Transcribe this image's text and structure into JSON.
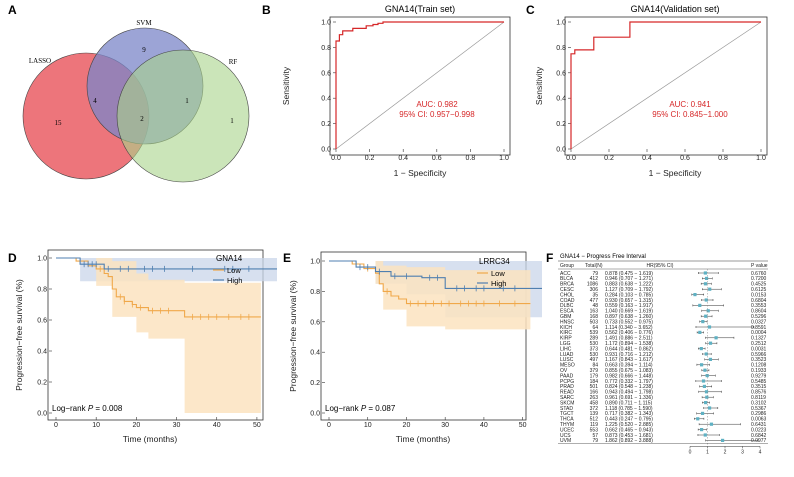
{
  "figure": {
    "colors": {
      "lasso": "#ec6e74",
      "svm": "#7b86c8",
      "rf": "#a8d48a",
      "roc": "#d62728",
      "low": "#f0a84a",
      "low_band": "#fbe3c0",
      "high": "#4f7fb0",
      "high_band": "#c9d6ea",
      "forest_point": "#5fb1c3"
    }
  },
  "panels": {
    "A": {
      "letter": "A",
      "labels": {
        "lasso": "LASSO",
        "svm": "SVM",
        "rf": "RF"
      },
      "counts": {
        "lasso_only": "15",
        "svm_only": "9",
        "rf_only": "1",
        "lasso_svm": "4",
        "svm_rf": "1",
        "all": "2"
      }
    },
    "B": {
      "letter": "B",
      "title": "GNA14(Train set)",
      "xlabel": "1 − Specificity",
      "ylabel": "Sensitivity",
      "auc": "AUC: 0.982",
      "ci": "95% CI: 0.957−0.998",
      "ticks": [
        "0.0",
        "0.2",
        "0.4",
        "0.6",
        "0.8",
        "1.0"
      ]
    },
    "C": {
      "letter": "C",
      "title": "GNA14(Validation set)",
      "xlabel": "1 − Specificity",
      "ylabel": "Sensitivity",
      "auc": "AUC: 0.941",
      "ci": "95% CI: 0.845−1.000",
      "ticks": [
        "0.0",
        "0.2",
        "0.4",
        "0.6",
        "0.8",
        "1.0"
      ]
    },
    "D": {
      "letter": "D",
      "legend_title": "GNA14",
      "legend_low": "Low",
      "legend_high": "High",
      "xlabel": "Time (months)",
      "ylabel": "Progression−free survival (%)",
      "logrank_text": "Log−rank ",
      "p_label": "P",
      "p_value": " = 0.008",
      "xticks": [
        "0",
        "10",
        "20",
        "30",
        "40",
        "50"
      ],
      "yticks": [
        "0.0",
        "0.2",
        "0.4",
        "0.6",
        "0.8",
        "1.0"
      ]
    },
    "E": {
      "letter": "E",
      "legend_title": "LRRC34",
      "legend_low": "Low",
      "legend_high": "High",
      "xlabel": "Time (months)",
      "ylabel": "Progression−free survival (%)",
      "logrank_text": "Log−rank ",
      "p_label": "P",
      "p_value": " = 0.087",
      "xticks": [
        "0",
        "10",
        "20",
        "30",
        "40",
        "50"
      ],
      "yticks": [
        "0.0",
        "0.2",
        "0.4",
        "0.6",
        "0.8",
        "1.0"
      ]
    },
    "F": {
      "letter": "F",
      "title": "GNA14 − Progress Free Interval",
      "headers": {
        "group": "Group",
        "total": "Total(N)",
        "hr": "HR(95% CI)",
        "p": "P value"
      },
      "axis_ticks": [
        "0",
        "1",
        "2",
        "3",
        "4"
      ]
    }
  },
  "chart_data": [
    {
      "type": "venn",
      "panel": "A",
      "sets": [
        "LASSO",
        "SVM",
        "RF"
      ],
      "regions": {
        "LASSO": 15,
        "SVM": 9,
        "RF": 1,
        "LASSO&SVM": 4,
        "SVM&RF": 1,
        "LASSO&SVM&RF": 2
      }
    },
    {
      "type": "line",
      "panel": "B",
      "title": "GNA14(Train set)",
      "xlabel": "1 − Specificity",
      "ylabel": "Sensitivity",
      "xlim": [
        0,
        1
      ],
      "ylim": [
        0,
        1
      ],
      "points": [
        [
          0,
          0
        ],
        [
          0,
          0.85
        ],
        [
          0.02,
          0.85
        ],
        [
          0.02,
          0.9
        ],
        [
          0.04,
          0.9
        ],
        [
          0.04,
          0.93
        ],
        [
          0.1,
          0.93
        ],
        [
          0.1,
          0.95
        ],
        [
          0.18,
          0.95
        ],
        [
          0.18,
          0.97
        ],
        [
          0.22,
          0.97
        ],
        [
          0.22,
          0.98
        ],
        [
          0.25,
          0.98
        ],
        [
          0.25,
          0.99
        ],
        [
          0.28,
          0.99
        ],
        [
          0.28,
          1.0
        ],
        [
          1,
          1
        ]
      ]
    },
    {
      "type": "line",
      "panel": "C",
      "title": "GNA14(Validation set)",
      "xlabel": "1 − Specificity",
      "ylabel": "Sensitivity",
      "xlim": [
        0,
        1
      ],
      "ylim": [
        0,
        1
      ],
      "points": [
        [
          0,
          0
        ],
        [
          0,
          0.75
        ],
        [
          0.02,
          0.75
        ],
        [
          0.02,
          0.78
        ],
        [
          0.12,
          0.78
        ],
        [
          0.12,
          0.88
        ],
        [
          0.31,
          0.88
        ],
        [
          0.31,
          1.0
        ],
        [
          1,
          1
        ]
      ]
    },
    {
      "type": "line",
      "panel": "D",
      "xlabel": "Time (months)",
      "ylabel": "Progression−free survival (%)",
      "xlim": [
        0,
        55
      ],
      "ylim": [
        0,
        1
      ],
      "series": [
        {
          "name": "High",
          "points": [
            [
              0,
              1
            ],
            [
              6,
              1
            ],
            [
              6,
              0.96
            ],
            [
              12,
              0.96
            ],
            [
              12,
              0.93
            ],
            [
              55,
              0.93
            ]
          ],
          "band": [
            [
              0,
              1,
              1
            ],
            [
              6,
              1,
              0.85
            ],
            [
              12,
              1,
              0.85
            ],
            [
              55,
              1,
              0.85
            ]
          ]
        },
        {
          "name": "Low",
          "points": [
            [
              0,
              1
            ],
            [
              5,
              1
            ],
            [
              5,
              0.98
            ],
            [
              8,
              0.98
            ],
            [
              8,
              0.95
            ],
            [
              10,
              0.95
            ],
            [
              10,
              0.93
            ],
            [
              12,
              0.93
            ],
            [
              12,
              0.9
            ],
            [
              13,
              0.9
            ],
            [
              13,
              0.88
            ],
            [
              14,
              0.88
            ],
            [
              14,
              0.8
            ],
            [
              15,
              0.8
            ],
            [
              15,
              0.75
            ],
            [
              17,
              0.75
            ],
            [
              17,
              0.72
            ],
            [
              19,
              0.72
            ],
            [
              19,
              0.7
            ],
            [
              20,
              0.7
            ],
            [
              20,
              0.68
            ],
            [
              23,
              0.68
            ],
            [
              23,
              0.66
            ],
            [
              32,
              0.66
            ],
            [
              32,
              0.62
            ],
            [
              51,
              0.62
            ]
          ],
          "band": [
            [
              0,
              1,
              1
            ],
            [
              10,
              1,
              0.82
            ],
            [
              14,
              0.98,
              0.62
            ],
            [
              20,
              0.9,
              0.52
            ],
            [
              23,
              0.86,
              0.48
            ],
            [
              32,
              0.84,
              0.0
            ],
            [
              51,
              0.84,
              0.0
            ]
          ]
        }
      ],
      "censor_high": [
        7,
        8,
        9,
        10,
        13,
        16,
        18,
        22,
        24,
        27,
        34,
        42,
        44,
        48
      ],
      "censor_low": [
        11,
        16,
        17,
        19,
        21,
        24,
        26,
        28,
        34,
        36,
        38,
        40,
        43,
        46,
        48
      ],
      "logrank_p": 0.008
    },
    {
      "type": "line",
      "panel": "E",
      "xlabel": "Time (months)",
      "ylabel": "Progression−free survival (%)",
      "xlim": [
        0,
        55
      ],
      "ylim": [
        0,
        1
      ],
      "series": [
        {
          "name": "High",
          "points": [
            [
              0,
              1
            ],
            [
              7,
              1
            ],
            [
              7,
              0.96
            ],
            [
              12,
              0.96
            ],
            [
              12,
              0.93
            ],
            [
              16,
              0.93
            ],
            [
              16,
              0.9
            ],
            [
              24,
              0.9
            ],
            [
              24,
              0.89
            ],
            [
              30,
              0.89
            ],
            [
              30,
              0.82
            ],
            [
              55,
              0.82
            ]
          ],
          "band": [
            [
              0,
              1,
              1
            ],
            [
              12,
              1,
              0.85
            ],
            [
              20,
              1,
              0.78
            ],
            [
              30,
              1,
              0.63
            ],
            [
              55,
              1,
              0.63
            ]
          ]
        },
        {
          "name": "Low",
          "points": [
            [
              0,
              1
            ],
            [
              6,
              1
            ],
            [
              6,
              0.98
            ],
            [
              9,
              0.98
            ],
            [
              9,
              0.95
            ],
            [
              12,
              0.95
            ],
            [
              12,
              0.92
            ],
            [
              13,
              0.92
            ],
            [
              13,
              0.85
            ],
            [
              14,
              0.85
            ],
            [
              14,
              0.8
            ],
            [
              16,
              0.8
            ],
            [
              16,
              0.77
            ],
            [
              18,
              0.77
            ],
            [
              18,
              0.75
            ],
            [
              20,
              0.75
            ],
            [
              20,
              0.72
            ],
            [
              52,
              0.72
            ]
          ],
          "band": [
            [
              0,
              1,
              1
            ],
            [
              12,
              1,
              0.85
            ],
            [
              14,
              0.97,
              0.68
            ],
            [
              20,
              0.96,
              0.57
            ],
            [
              30,
              0.94,
              0.55
            ],
            [
              52,
              0.94,
              0.55
            ]
          ]
        }
      ],
      "censor_high": [
        8,
        10,
        13,
        17,
        20,
        26,
        28,
        33,
        35,
        38,
        40,
        45,
        48
      ],
      "censor_low": [
        10,
        15,
        21,
        23,
        25,
        27,
        29,
        31,
        34,
        36,
        38,
        40,
        44,
        48
      ],
      "logrank_p": 0.087
    },
    {
      "type": "table",
      "panel": "F",
      "title": "GNA14 − Progress Free Interval",
      "columns": [
        "Group",
        "Total(N)",
        "HR(95% CI)",
        "P value"
      ],
      "xlim": [
        0,
        4
      ],
      "rows": [
        {
          "group": "ACC",
          "n": "79",
          "hr_text": "0.878 (0.475 − 1.619)",
          "p": "0.6760",
          "hr": 0.878,
          "lo": 0.475,
          "hi": 1.619
        },
        {
          "group": "BLCA",
          "n": "412",
          "hr_text": "0.946 (0.707 − 1.271)",
          "p": "0.7200",
          "hr": 0.946,
          "lo": 0.707,
          "hi": 1.271
        },
        {
          "group": "BRCA",
          "n": "1086",
          "hr_text": "0.883 (0.638 − 1.222)",
          "p": "0.4525",
          "hr": 0.883,
          "lo": 0.638,
          "hi": 1.222
        },
        {
          "group": "CESC",
          "n": "306",
          "hr_text": "1.127 (0.709 − 1.792)",
          "p": "0.6125",
          "hr": 1.127,
          "lo": 0.709,
          "hi": 1.792
        },
        {
          "group": "CHOL",
          "n": "35",
          "hr_text": "0.284 (0.103 − 0.785)",
          "p": "0.0153",
          "hr": 0.284,
          "lo": 0.103,
          "hi": 0.785
        },
        {
          "group": "COAD",
          "n": "477",
          "hr_text": "0.930 (0.657 − 1.315)",
          "p": "0.6804",
          "hr": 0.93,
          "lo": 0.657,
          "hi": 1.315
        },
        {
          "group": "DLBC",
          "n": "48",
          "hr_text": "0.559 (0.163 − 1.917)",
          "p": "0.3553",
          "hr": 0.559,
          "lo": 0.163,
          "hi": 1.917
        },
        {
          "group": "ESCA",
          "n": "163",
          "hr_text": "1.040 (0.669 − 1.619)",
          "p": "0.8604",
          "hr": 1.04,
          "lo": 0.669,
          "hi": 1.619
        },
        {
          "group": "GBM",
          "n": "168",
          "hr_text": "0.897 (0.638 − 1.260)",
          "p": "0.5296",
          "hr": 0.897,
          "lo": 0.638,
          "hi": 1.26
        },
        {
          "group": "HNSC",
          "n": "503",
          "hr_text": "0.733 (0.552 − 0.975)",
          "p": "0.0327",
          "hr": 0.733,
          "lo": 0.552,
          "hi": 0.975
        },
        {
          "group": "KICH",
          "n": "64",
          "hr_text": "1.114 (0.340 − 3.652)",
          "p": "0.8591",
          "hr": 1.114,
          "lo": 0.34,
          "hi": 3.652
        },
        {
          "group": "KIRC",
          "n": "539",
          "hr_text": "0.562 (0.406 − 0.776)",
          "p": "0.0004",
          "hr": 0.562,
          "lo": 0.406,
          "hi": 0.776
        },
        {
          "group": "KIRP",
          "n": "289",
          "hr_text": "1.491 (0.886 − 2.511)",
          "p": "0.1327",
          "hr": 1.491,
          "lo": 0.886,
          "hi": 2.511
        },
        {
          "group": "LGG",
          "n": "530",
          "hr_text": "1.172 (0.894 − 1.538)",
          "p": "0.2512",
          "hr": 1.172,
          "lo": 0.894,
          "hi": 1.538
        },
        {
          "group": "LIHC",
          "n": "373",
          "hr_text": "0.644 (0.481 − 0.862)",
          "p": "0.0031",
          "hr": 0.644,
          "lo": 0.481,
          "hi": 0.862
        },
        {
          "group": "LUAD",
          "n": "530",
          "hr_text": "0.931 (0.716 − 1.212)",
          "p": "0.5966",
          "hr": 0.931,
          "lo": 0.716,
          "hi": 1.212
        },
        {
          "group": "LUSC",
          "n": "497",
          "hr_text": "1.167 (0.843 − 1.617)",
          "p": "0.3523",
          "hr": 1.167,
          "lo": 0.843,
          "hi": 1.617
        },
        {
          "group": "MESO",
          "n": "84",
          "hr_text": "0.663 (0.394 − 1.114)",
          "p": "0.1208",
          "hr": 0.663,
          "lo": 0.394,
          "hi": 1.114
        },
        {
          "group": "OV",
          "n": "379",
          "hr_text": "0.855 (0.675 − 1.083)",
          "p": "0.1933",
          "hr": 0.855,
          "lo": 0.675,
          "hi": 1.083
        },
        {
          "group": "PAAD",
          "n": "179",
          "hr_text": "0.982 (0.666 − 1.448)",
          "p": "0.9279",
          "hr": 0.982,
          "lo": 0.666,
          "hi": 1.448
        },
        {
          "group": "PCPG",
          "n": "184",
          "hr_text": "0.772 (0.332 − 1.797)",
          "p": "0.5485",
          "hr": 0.772,
          "lo": 0.332,
          "hi": 1.797
        },
        {
          "group": "PRAD",
          "n": "501",
          "hr_text": "0.824 (0.548 − 1.238)",
          "p": "0.3515",
          "hr": 0.824,
          "lo": 0.548,
          "hi": 1.238
        },
        {
          "group": "READ",
          "n": "166",
          "hr_text": "0.943 (0.494 − 1.798)",
          "p": "0.8576",
          "hr": 0.943,
          "lo": 0.494,
          "hi": 1.798
        },
        {
          "group": "SARC",
          "n": "263",
          "hr_text": "0.961 (0.691 − 1.336)",
          "p": "0.8119",
          "hr": 0.961,
          "lo": 0.691,
          "hi": 1.336
        },
        {
          "group": "SKCM",
          "n": "458",
          "hr_text": "0.890 (0.711 − 1.115)",
          "p": "0.3102",
          "hr": 0.89,
          "lo": 0.711,
          "hi": 1.115
        },
        {
          "group": "STAD",
          "n": "372",
          "hr_text": "1.118 (0.785 − 1.590)",
          "p": "0.5367",
          "hr": 1.118,
          "lo": 0.785,
          "hi": 1.59
        },
        {
          "group": "TGCT",
          "n": "139",
          "hr_text": "0.717 (0.382 − 1.343)",
          "p": "0.2986",
          "hr": 0.717,
          "lo": 0.382,
          "hi": 1.343
        },
        {
          "group": "THCA",
          "n": "512",
          "hr_text": "0.443 (0.247 − 0.795)",
          "p": "0.0063",
          "hr": 0.443,
          "lo": 0.247,
          "hi": 0.795
        },
        {
          "group": "THYM",
          "n": "119",
          "hr_text": "1.225 (0.520 − 2.885)",
          "p": "0.6431",
          "hr": 1.225,
          "lo": 0.52,
          "hi": 2.885
        },
        {
          "group": "UCEC",
          "n": "553",
          "hr_text": "0.662 (0.465 − 0.943)",
          "p": "0.0223",
          "hr": 0.662,
          "lo": 0.465,
          "hi": 0.943
        },
        {
          "group": "UCS",
          "n": "57",
          "hr_text": "0.873 (0.453 − 1.681)",
          "p": "0.6842",
          "hr": 0.873,
          "lo": 0.453,
          "hi": 1.681
        },
        {
          "group": "UVM",
          "n": "79",
          "hr_text": "1.862 (0.892 − 3.888)",
          "p": "0.0977",
          "hr": 1.862,
          "lo": 0.892,
          "hi": 3.888
        }
      ]
    }
  ]
}
